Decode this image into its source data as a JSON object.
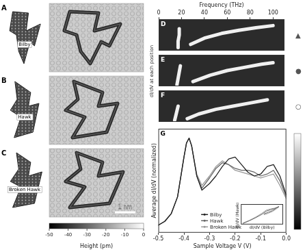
{
  "figure": {
    "panels_left": [
      {
        "letter": "A",
        "name": "Bilby"
      },
      {
        "letter": "B",
        "name": "Hawk"
      },
      {
        "letter": "C",
        "name": "Broken Hawk"
      }
    ],
    "scale_bar": "1 nm",
    "height_colorbar": {
      "label": "Height (pm)",
      "range": [
        -50,
        0
      ],
      "ticks": [
        -50,
        -40,
        -30,
        -20,
        -10,
        0
      ]
    },
    "spectra_ylabel": "dI/dV at each position"
  },
  "chart_data": [
    {
      "type": "line",
      "title": "D",
      "annotation": "▲",
      "xlabel": "Frequency (THz)",
      "xlim": [
        0,
        110
      ],
      "xticks": [
        0,
        20,
        40,
        60,
        80,
        100
      ],
      "ylim": [
        0,
        10
      ],
      "tick_labels": "x",
      "series": [
        {
          "color": "#f0f0f0",
          "x": [
            17,
            17,
            18,
            18
          ],
          "values": [
            1,
            3,
            5,
            7
          ]
        },
        {
          "color": "#f0f0f0",
          "x": [
            28,
            40,
            55,
            70,
            85,
            100
          ],
          "values": [
            2,
            4,
            5.5,
            6.5,
            7.3,
            8
          ]
        }
      ]
    },
    {
      "type": "line",
      "title": "E",
      "annotation": "●",
      "xlim": [
        0,
        110
      ],
      "ylim": [
        0,
        10
      ],
      "tick_labels": false,
      "series": [
        {
          "color": "#f0f0f0",
          "x": [
            16,
            17,
            18,
            19
          ],
          "values": [
            0.5,
            2.5,
            4.5,
            6.5
          ]
        },
        {
          "color": "#f0f0f0",
          "x": [
            30,
            45,
            60,
            75,
            90,
            100
          ],
          "values": [
            1.5,
            3.5,
            5,
            6,
            7,
            7.5
          ]
        }
      ]
    },
    {
      "type": "line",
      "title": "F",
      "annotation": "○",
      "xlim": [
        0,
        110
      ],
      "ylim": [
        0,
        10
      ],
      "tick_labels": false,
      "series": [
        {
          "color": "#f0f0f0",
          "x": [
            14,
            15,
            16,
            17
          ],
          "values": [
            0.5,
            2,
            3.5,
            5
          ]
        },
        {
          "color": "#f0f0f0",
          "x": [
            25,
            35,
            50,
            65,
            80,
            95
          ],
          "values": [
            1,
            2.5,
            4,
            5,
            6,
            7
          ]
        }
      ]
    },
    {
      "type": "line",
      "title": "G",
      "xlabel": "Sample Voltage V (V)",
      "ylabel": "Average dI/dV (normalized)",
      "xlim": [
        -0.5,
        0
      ],
      "xticks": [
        -0.5,
        -0.4,
        -0.3,
        -0.2,
        -0.1,
        {
          "value": 0,
          "label": "0.0"
        }
      ],
      "ylim": [
        0,
        1.1
      ],
      "tick_labels": "x",
      "legend": "lower center",
      "x": [
        -0.5,
        -0.475,
        -0.45,
        -0.425,
        -0.4,
        -0.39,
        -0.38,
        -0.37,
        -0.35,
        -0.33,
        -0.3,
        -0.275,
        -0.25,
        -0.225,
        -0.2,
        -0.175,
        -0.15,
        -0.125,
        -0.1,
        -0.075,
        -0.05,
        -0.025,
        0
      ],
      "series": [
        {
          "name": "Bilby",
          "color": "#222222",
          "values": [
            0.08,
            0.12,
            0.2,
            0.38,
            0.8,
            0.95,
            1.0,
            0.92,
            0.6,
            0.45,
            0.52,
            0.6,
            0.7,
            0.78,
            0.8,
            0.72,
            0.64,
            0.6,
            0.62,
            0.7,
            0.72,
            0.6,
            0.4
          ]
        },
        {
          "name": "Hawk",
          "color": "#666666",
          "values": [
            0.08,
            0.12,
            0.2,
            0.38,
            0.8,
            0.95,
            1.0,
            0.92,
            0.6,
            0.47,
            0.58,
            0.68,
            0.74,
            0.72,
            0.68,
            0.66,
            0.66,
            0.64,
            0.6,
            0.62,
            0.66,
            0.55,
            0.38
          ]
        },
        {
          "name": "Broken Hawk",
          "color": "#999999",
          "values": [
            0.08,
            0.12,
            0.2,
            0.38,
            0.8,
            0.95,
            1.0,
            0.92,
            0.62,
            0.5,
            0.6,
            0.7,
            0.76,
            0.72,
            0.66,
            0.64,
            0.62,
            0.6,
            0.58,
            0.6,
            0.62,
            0.5,
            0.36
          ]
        }
      ]
    },
    {
      "type": "line",
      "xlabel": "dI/dV (Bilby)",
      "ylabel": "dI/dV (Hawks)",
      "xlim": [
        0,
        1
      ],
      "ylim": [
        0,
        1
      ],
      "tick_labels": false,
      "series": [
        {
          "color": "#666666",
          "x": [
            0.05,
            0.2,
            0.35,
            0.5,
            0.6,
            0.7,
            0.8,
            0.9,
            0.85,
            0.75,
            0.65,
            0.55
          ],
          "values": [
            0.05,
            0.18,
            0.33,
            0.5,
            0.65,
            0.72,
            0.78,
            0.88,
            0.82,
            0.68,
            0.6,
            0.52
          ]
        },
        {
          "color": "#999999",
          "x": [
            0.05,
            0.2,
            0.35,
            0.5,
            0.6,
            0.7,
            0.8,
            0.9,
            0.85,
            0.75,
            0.65,
            0.55
          ],
          "values": [
            0.07,
            0.2,
            0.36,
            0.55,
            0.7,
            0.76,
            0.8,
            0.86,
            0.78,
            0.64,
            0.55,
            0.48
          ]
        }
      ]
    }
  ]
}
